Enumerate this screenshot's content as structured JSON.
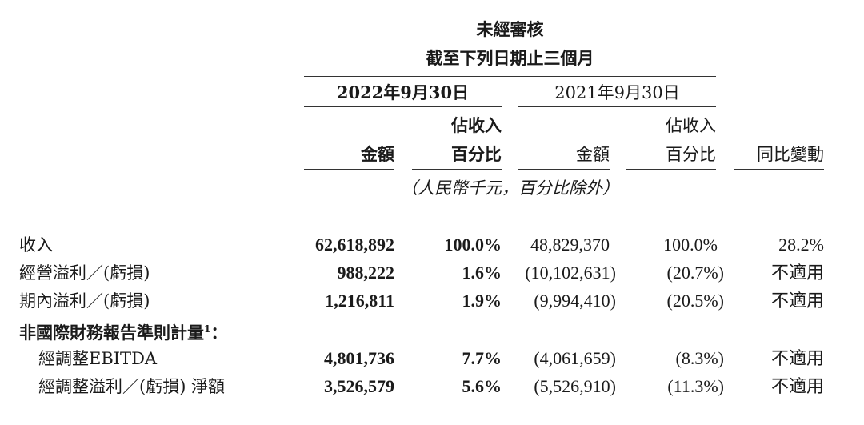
{
  "header": {
    "title": "未經審核",
    "subtitle": "截至下列日期止三個月",
    "period_2022": "2022年9月30日",
    "period_2021": "2021年9月30日",
    "col_amount": "金額",
    "col_pct_line1": "佔收入",
    "col_pct_line2": "百分比",
    "col_yoy": "同比變動",
    "unit_note": "（人民幣千元，百分比除外）"
  },
  "rows": [
    {
      "label": "收入",
      "amt_2022": "62,618,892",
      "pct_2022": "100.0%",
      "amt_2021": "48,829,370",
      "pct_2021": "100.0%",
      "yoy": "28.2%"
    },
    {
      "label": "經營溢利／(虧損)",
      "amt_2022": "988,222",
      "pct_2022": "1.6%",
      "amt_2021": "(10,102,631)",
      "pct_2021": "(20.7%)",
      "yoy": "不適用"
    },
    {
      "label": "期內溢利／(虧損)",
      "amt_2022": "1,216,811",
      "pct_2022": "1.9%",
      "amt_2021": "(9,994,410)",
      "pct_2021": "(20.5%)",
      "yoy": "不適用"
    }
  ],
  "section": {
    "label": "非國際財務報告準則計量",
    "footnote": "1",
    "colon": "："
  },
  "sub_rows": [
    {
      "label": "經調整EBITDA",
      "amt_2022": "4,801,736",
      "pct_2022": "7.7%",
      "amt_2021": "(4,061,659)",
      "pct_2021": "(8.3%)",
      "yoy": "不適用"
    },
    {
      "label": "經調整溢利／(虧損) 淨額",
      "amt_2022": "3,526,579",
      "pct_2022": "5.6%",
      "amt_2021": "(5,526,910)",
      "pct_2021": "(11.3%)",
      "yoy": "不適用"
    }
  ]
}
